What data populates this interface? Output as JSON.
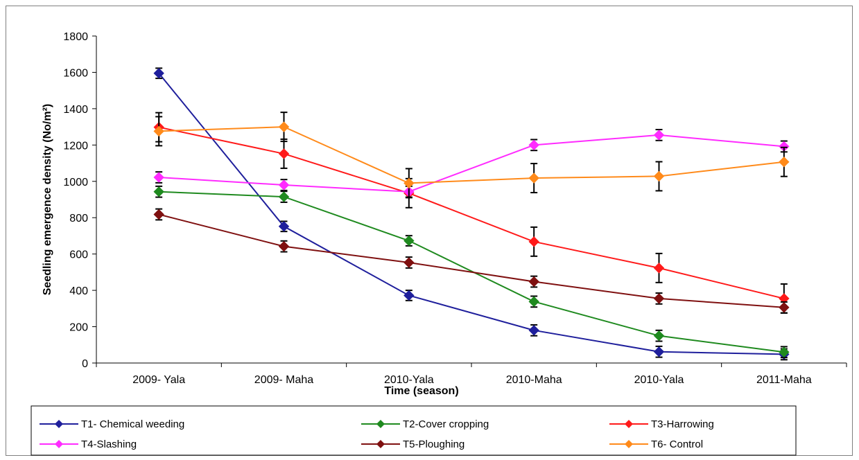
{
  "chart_data": {
    "type": "line",
    "title": "",
    "xlabel": "Time (season)",
    "ylabel": "Seedling emergence density (No/m²)",
    "ylim": [
      0,
      1800
    ],
    "yticks": [
      0,
      200,
      400,
      600,
      800,
      1000,
      1200,
      1400,
      1600,
      1800
    ],
    "categories": [
      "2009- Yala",
      "2009- Maha",
      "2010-Yala",
      "2010-Maha",
      "2010-Yala",
      "2011-Maha"
    ],
    "grid": false,
    "legend_position": "bottom",
    "series": [
      {
        "name": "T1- Chemical weeding",
        "color": "#1f1f9c",
        "values": [
          1595,
          752,
          372,
          180,
          62,
          48
        ],
        "errors": [
          28,
          28,
          28,
          30,
          30,
          30
        ]
      },
      {
        "name": "T2-Cover cropping",
        "color": "#1f8a1f",
        "values": [
          943,
          915,
          673,
          338,
          150,
          60
        ],
        "errors": [
          30,
          30,
          28,
          30,
          30,
          30
        ]
      },
      {
        "name": "T3-Harrowing",
        "color": "#ff1a1a",
        "values": [
          1298,
          1152,
          935,
          668,
          523,
          355
        ],
        "errors": [
          80,
          80,
          80,
          80,
          80,
          80
        ]
      },
      {
        "name": "T4-Slashing",
        "color": "#ff2bff",
        "values": [
          1022,
          980,
          943,
          1200,
          1255,
          1192
        ],
        "errors": [
          30,
          30,
          30,
          30,
          30,
          30
        ]
      },
      {
        "name": "T5-Ploughing",
        "color": "#7f1010",
        "values": [
          818,
          642,
          553,
          448,
          355,
          306
        ],
        "errors": [
          30,
          30,
          30,
          30,
          30,
          30
        ]
      },
      {
        "name": "T6- Control",
        "color": "#ff8a1a",
        "values": [
          1276,
          1300,
          990,
          1018,
          1028,
          1107
        ],
        "errors": [
          80,
          80,
          80,
          80,
          80,
          80
        ]
      }
    ]
  }
}
